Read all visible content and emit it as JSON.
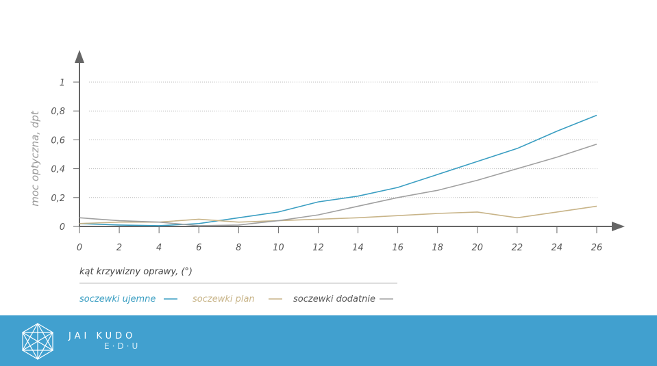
{
  "chart_data": {
    "type": "line",
    "xlabel": "kąt krzywizny oprawy, (°)",
    "ylabel": "moc optyczna, dpt",
    "x": [
      0,
      2,
      4,
      6,
      8,
      10,
      12,
      14,
      16,
      18,
      20,
      22,
      24,
      26
    ],
    "xticks": [
      "0",
      "2",
      "4",
      "6",
      "8",
      "10",
      "12",
      "14",
      "16",
      "18",
      "20",
      "22",
      "24",
      "26"
    ],
    "yticks": [
      "0",
      "0,2",
      "0,4",
      "0,6",
      "0,8",
      "1"
    ],
    "xlim": [
      0,
      26
    ],
    "ylim": [
      0,
      1
    ],
    "grid": true,
    "legend": "bottom-left",
    "series": [
      {
        "name": "soczewki ujemne",
        "color": "#3a9ec2",
        "values": [
          0.02,
          0.01,
          0.005,
          0.02,
          0.06,
          0.1,
          0.17,
          0.21,
          0.27,
          0.36,
          0.45,
          0.54,
          0.66,
          0.77
        ]
      },
      {
        "name": "soczewki plan",
        "color": "#c8b488",
        "values": [
          0.02,
          0.03,
          0.03,
          0.05,
          0.03,
          0.04,
          0.05,
          0.06,
          0.075,
          0.09,
          0.1,
          0.06,
          0.1,
          0.14
        ]
      },
      {
        "name": "soczewki dodatnie",
        "color": "#a0a0a0",
        "values": [
          0.06,
          0.04,
          0.03,
          0.005,
          0.01,
          0.04,
          0.08,
          0.14,
          0.2,
          0.25,
          0.32,
          0.4,
          0.48,
          0.57
        ]
      }
    ]
  },
  "footer": {
    "brand": "JAI KUDO",
    "sub": "E·D·U"
  }
}
